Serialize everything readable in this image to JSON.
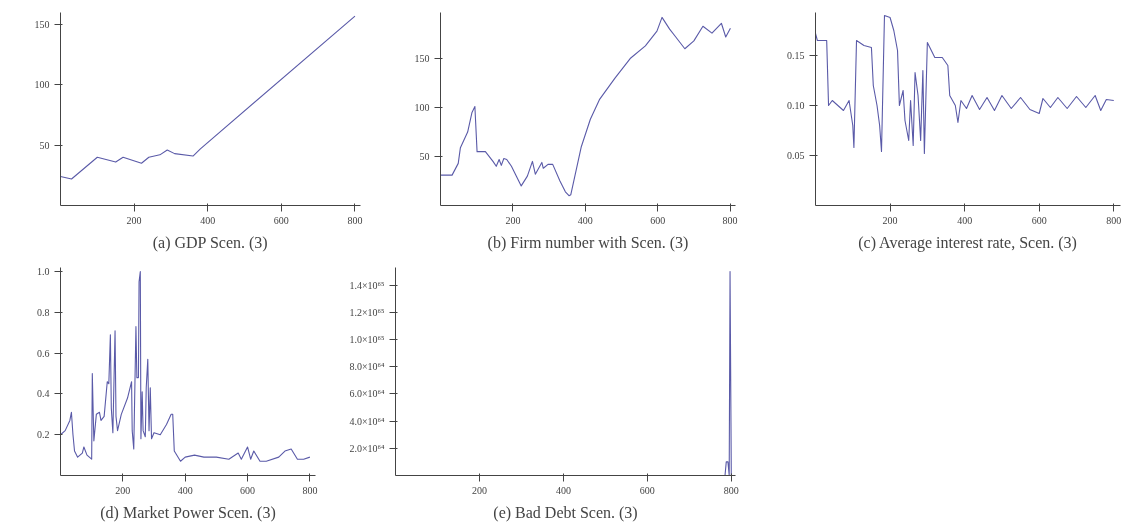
{
  "chart_data": [
    {
      "type": "line",
      "title": "(a) GDP Scen. (3)",
      "color": "#5a5aa8",
      "xlim": [
        0,
        815
      ],
      "ylim": [
        0,
        160
      ],
      "xticks": [
        200,
        400,
        600,
        800
      ],
      "yticks": [
        50,
        100,
        150
      ],
      "x": [
        0,
        30,
        100,
        150,
        170,
        220,
        240,
        270,
        290,
        310,
        360,
        380,
        800
      ],
      "values": [
        24,
        22,
        40,
        36,
        40,
        35,
        40,
        42,
        46,
        43,
        41,
        47,
        157
      ]
    },
    {
      "type": "line",
      "title": "(b) Firm number with Scen. (3)",
      "color": "#5a5aa8",
      "xlim": [
        0,
        815
      ],
      "ylim": [
        0,
        197
      ],
      "xticks": [
        200,
        400,
        600,
        800
      ],
      "yticks": [
        50,
        100,
        150
      ],
      "x": [
        0,
        32,
        49,
        55,
        75,
        87,
        95,
        101,
        124,
        145,
        154,
        162,
        168,
        175,
        183,
        196,
        223,
        240,
        254,
        262,
        280,
        284,
        297,
        310,
        330,
        345,
        355,
        360,
        389,
        414,
        439,
        482,
        524,
        566,
        598,
        612,
        633,
        650,
        675,
        700,
        725,
        750,
        776,
        788,
        801
      ],
      "values": [
        31,
        31,
        43,
        59,
        75,
        95,
        101,
        55,
        55,
        45,
        40,
        47,
        41,
        48,
        47,
        40,
        20,
        30,
        45,
        32,
        44,
        38,
        42,
        42,
        25,
        14,
        10,
        11,
        60,
        88,
        108,
        130,
        150,
        163,
        178,
        192,
        180,
        172,
        160,
        168,
        183,
        176,
        186,
        172,
        181
      ]
    },
    {
      "type": "line",
      "title": "(c) Average interest rate, Scen. (3)",
      "color": "#5a5aa8",
      "xlim": [
        0,
        818
      ],
      "ylim": [
        0,
        0.193
      ],
      "xticks": [
        200,
        400,
        600,
        800
      ],
      "yticks": [
        0.05,
        {
          "value": 0.1,
          "label": "0.10"
        },
        0.15
      ],
      "x": [
        0,
        5,
        30,
        35,
        45,
        60,
        75,
        90,
        100,
        103,
        110,
        130,
        150,
        155,
        165,
        172,
        177,
        185,
        200,
        210,
        220,
        225,
        235,
        240,
        250,
        255,
        262,
        267,
        275,
        282,
        288,
        292,
        300,
        320,
        340,
        355,
        360,
        375,
        382,
        390,
        405,
        420,
        440,
        460,
        480,
        500,
        525,
        550,
        575,
        600,
        610,
        630,
        650,
        675,
        700,
        725,
        750,
        765,
        780,
        800
      ],
      "values": [
        0.172,
        0.165,
        0.165,
        0.1,
        0.105,
        0.1,
        0.095,
        0.105,
        0.08,
        0.058,
        0.165,
        0.16,
        0.158,
        0.12,
        0.1,
        0.08,
        0.054,
        0.19,
        0.188,
        0.175,
        0.155,
        0.1,
        0.115,
        0.085,
        0.065,
        0.105,
        0.06,
        0.133,
        0.11,
        0.065,
        0.135,
        0.052,
        0.163,
        0.148,
        0.148,
        0.14,
        0.11,
        0.1,
        0.083,
        0.105,
        0.097,
        0.11,
        0.096,
        0.108,
        0.095,
        0.11,
        0.097,
        0.108,
        0.096,
        0.092,
        0.107,
        0.098,
        0.108,
        0.097,
        0.109,
        0.098,
        0.11,
        0.095,
        0.106,
        0.105
      ]
    },
    {
      "type": "line",
      "title": "(d) Market Power Scen. (3)",
      "color": "#5a5aa8",
      "xlim": [
        0,
        818
      ],
      "ylim": [
        0,
        1.02
      ],
      "xticks": [
        200,
        400,
        600,
        800
      ],
      "yticks": [
        0.2,
        0.4,
        0.6,
        0.8,
        {
          "value": 1.0,
          "label": "1.0"
        }
      ],
      "x": [
        0,
        15,
        30,
        35,
        40,
        45,
        55,
        70,
        75,
        85,
        100,
        102,
        107,
        115,
        125,
        130,
        140,
        150,
        155,
        160,
        163,
        168,
        175,
        178,
        183,
        195,
        215,
        228,
        230,
        235,
        242,
        245,
        250,
        252,
        256,
        258,
        262,
        265,
        272,
        275,
        280,
        284,
        288,
        292,
        300,
        320,
        340,
        355,
        360,
        365,
        385,
        400,
        430,
        460,
        500,
        540,
        570,
        580,
        600,
        610,
        620,
        640,
        660,
        700,
        720,
        740,
        760,
        780,
        800
      ],
      "values": [
        0.2,
        0.22,
        0.27,
        0.31,
        0.2,
        0.12,
        0.09,
        0.11,
        0.14,
        0.1,
        0.08,
        0.5,
        0.17,
        0.3,
        0.31,
        0.27,
        0.29,
        0.46,
        0.45,
        0.69,
        0.33,
        0.21,
        0.71,
        0.29,
        0.22,
        0.3,
        0.38,
        0.46,
        0.22,
        0.13,
        0.73,
        0.48,
        0.48,
        0.95,
        1.0,
        0.18,
        0.41,
        0.22,
        0.19,
        0.43,
        0.57,
        0.22,
        0.43,
        0.18,
        0.21,
        0.2,
        0.25,
        0.3,
        0.3,
        0.12,
        0.07,
        0.09,
        0.1,
        0.09,
        0.09,
        0.08,
        0.11,
        0.08,
        0.14,
        0.08,
        0.12,
        0.07,
        0.07,
        0.09,
        0.12,
        0.13,
        0.08,
        0.08,
        0.09
      ]
    },
    {
      "type": "line",
      "title": "(e) Bad Debt Scen. (3)",
      "color": "#5a5aa8",
      "xlim": [
        0,
        810
      ],
      "ylim": [
        0,
        1.53e+65
      ],
      "xticks": [
        200,
        400,
        600,
        800
      ],
      "yticks": [
        {
          "value": 2e+64,
          "label": "2.0×10⁶⁴"
        },
        {
          "value": 4e+64,
          "label": "4.0×10⁶⁴"
        },
        {
          "value": 6e+64,
          "label": "6.0×10⁶⁴"
        },
        {
          "value": 8e+64,
          "label": "8.0×10⁶⁴"
        },
        {
          "value": 1e+65,
          "label": "1.0×10⁶⁵"
        },
        {
          "value": 1.2e+65,
          "label": "1.2×10⁶⁵"
        },
        {
          "value": 1.4e+65,
          "label": "1.4×10⁶⁵"
        }
      ],
      "x": [
        0,
        780,
        785,
        788,
        792,
        795,
        797,
        800
      ],
      "values": [
        0,
        0,
        0,
        1e+64,
        1e+64,
        0,
        1.5e+65,
        0
      ]
    }
  ]
}
